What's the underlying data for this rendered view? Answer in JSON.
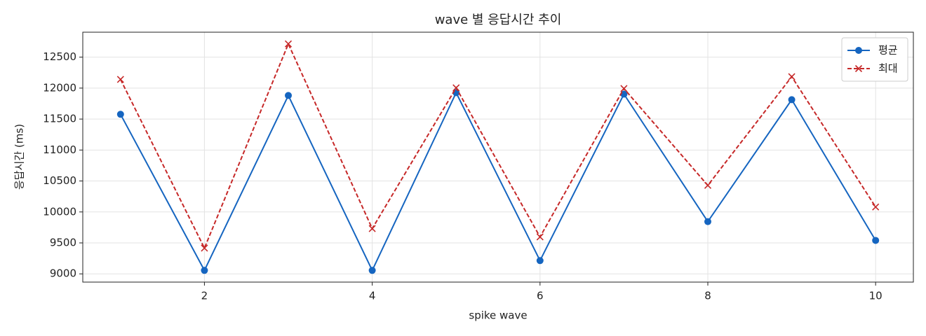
{
  "chart_data": {
    "type": "line",
    "title": "wave 별 응답시간 추이",
    "x_label": "spike wave",
    "y_label": "응답시간 (ms)",
    "x": [
      1,
      2,
      3,
      4,
      5,
      6,
      7,
      8,
      9,
      10
    ],
    "series": [
      {
        "name": "평균",
        "color": "#1565c0",
        "marker": "circle",
        "dash": "solid",
        "values": [
          11577,
          9056,
          11881,
          9056,
          11926,
          9214,
          11903,
          9844,
          11813,
          9540
        ]
      },
      {
        "name": "최대",
        "color": "#c62828",
        "marker": "x",
        "dash": "dashed",
        "values": [
          12140,
          9416,
          12714,
          9731,
          12005,
          9597,
          11993,
          10429,
          12185,
          10080
        ]
      }
    ],
    "xlim": [
      0.55,
      10.45
    ],
    "xticks": [
      2,
      4,
      6,
      8,
      10
    ],
    "ylim": [
      8867,
      12903
    ],
    "yticks": [
      9000,
      9500,
      10000,
      10500,
      11000,
      11500,
      12000,
      12500
    ],
    "grid": true,
    "legend": "upper right"
  }
}
